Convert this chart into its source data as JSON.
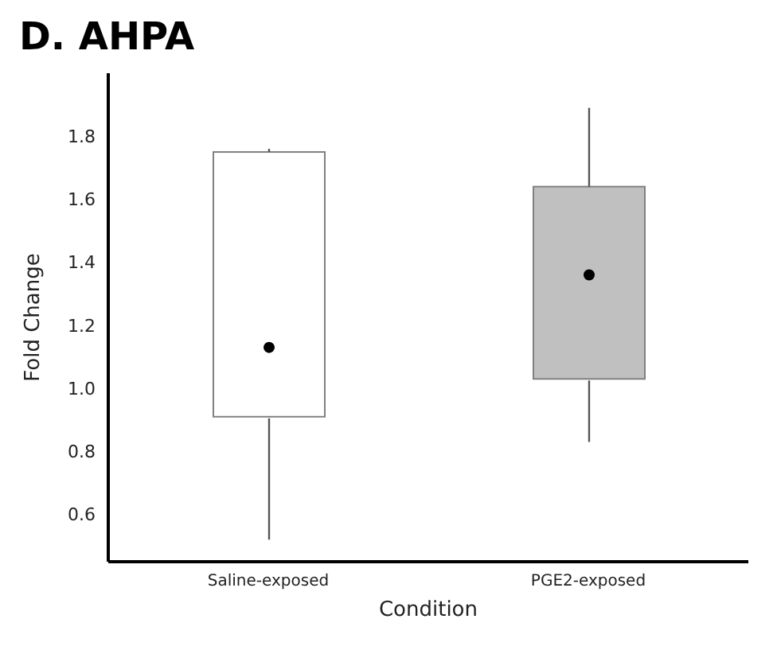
{
  "chart_data": {
    "type": "box",
    "title": "D. AHPA",
    "xlabel": "Condition",
    "ylabel": "Fold Change",
    "categories": [
      "Saline-exposed",
      "PGE2-exposed"
    ],
    "colors": [
      "#ffffff",
      "#c0c0c0"
    ],
    "boxes": [
      {
        "low": 0.52,
        "q1": 0.91,
        "median": 1.13,
        "q3": 1.75,
        "high": 1.76
      },
      {
        "low": 0.83,
        "q1": 1.03,
        "median": 1.36,
        "q3": 1.64,
        "high": 1.89
      }
    ],
    "ylim": [
      0.45,
      2.0
    ],
    "yticks": [
      0.6,
      0.8,
      {
        "value": 1,
        "label": "1.0"
      },
      1.2,
      1.4,
      1.6,
      1.8
    ],
    "grid": false
  }
}
